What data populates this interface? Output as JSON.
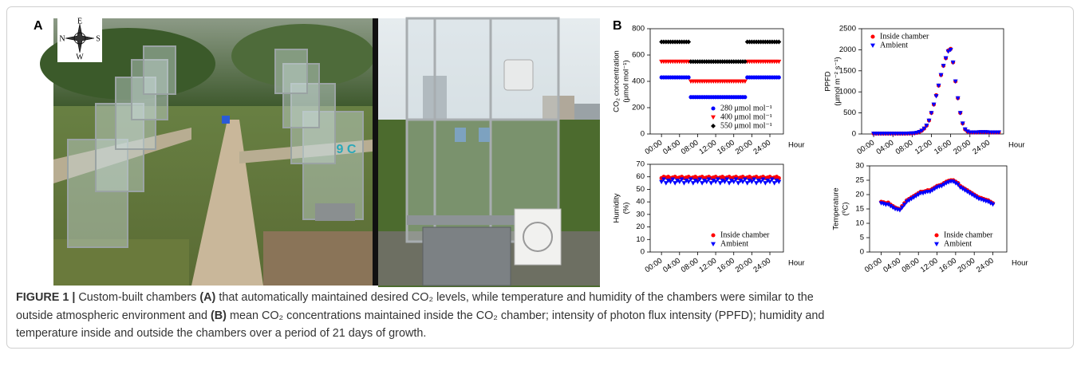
{
  "panel_a": {
    "label": "A",
    "compass": {
      "n": "N",
      "e": "E",
      "s": "S",
      "w": "W"
    },
    "sign_text": "9 C"
  },
  "panel_b": {
    "label": "B"
  },
  "chart_data": [
    {
      "type": "scatter",
      "ylabel": [
        "CO₂ concentration",
        "(μmol mol⁻¹)"
      ],
      "xlabel": "Hour",
      "x": [
        0,
        0.5,
        1,
        1.5,
        2,
        2.5,
        3,
        3.5,
        4,
        4.5,
        5,
        5.5,
        6,
        6.5,
        7,
        7.5,
        8,
        8.5,
        9,
        9.5,
        10,
        10.5,
        11,
        11.5,
        12,
        12.5,
        13,
        13.5,
        14,
        14.5,
        15,
        15.5,
        16,
        16.5,
        17,
        17.5,
        18,
        18.5,
        19,
        19.5,
        20,
        20.5,
        21,
        21.5,
        22,
        22.5,
        23,
        23.5,
        24,
        24.5,
        25,
        25.5,
        26
      ],
      "xlim": [
        -2.5,
        27
      ],
      "xticks": [
        {
          "value": 0,
          "label": "00:00"
        },
        {
          "value": 4,
          "label": "04:00"
        },
        {
          "value": 8,
          "label": "08:00"
        },
        {
          "value": 12,
          "label": "12:00"
        },
        {
          "value": 16,
          "label": "16:00"
        },
        {
          "value": 20,
          "label": "20:00"
        },
        {
          "value": 24,
          "label": "24:00"
        }
      ],
      "ylim": [
        0,
        800
      ],
      "yticks": [
        0,
        200,
        400,
        600,
        800
      ],
      "legend": "lower right",
      "series": [
        {
          "name": "280 μmol mol⁻¹",
          "color": "#0000ff",
          "marker": "circle",
          "values": [
            430,
            430,
            430,
            430,
            430,
            430,
            430,
            430,
            430,
            430,
            430,
            430,
            430,
            280,
            280,
            280,
            280,
            280,
            280,
            280,
            280,
            280,
            280,
            280,
            280,
            280,
            280,
            280,
            280,
            280,
            280,
            280,
            280,
            280,
            280,
            280,
            280,
            280,
            430,
            430,
            430,
            430,
            430,
            430,
            430,
            430,
            430,
            430,
            430,
            430,
            430,
            430,
            430
          ]
        },
        {
          "name": "400 μmol mol⁻¹",
          "color": "#ff0000",
          "marker": "triangle",
          "values": [
            550,
            550,
            550,
            550,
            550,
            550,
            550,
            550,
            550,
            550,
            550,
            550,
            550,
            400,
            400,
            400,
            400,
            400,
            400,
            400,
            400,
            400,
            400,
            400,
            400,
            400,
            400,
            400,
            400,
            400,
            400,
            400,
            400,
            400,
            400,
            400,
            400,
            400,
            550,
            550,
            550,
            550,
            550,
            550,
            550,
            550,
            550,
            550,
            550,
            550,
            550,
            550,
            550
          ]
        },
        {
          "name": "550 μmol mol⁻¹",
          "color": "#000000",
          "marker": "diamond",
          "values": [
            700,
            700,
            700,
            700,
            700,
            700,
            700,
            700,
            700,
            700,
            700,
            700,
            700,
            550,
            550,
            550,
            550,
            550,
            550,
            550,
            550,
            550,
            550,
            550,
            550,
            550,
            550,
            550,
            550,
            550,
            550,
            550,
            550,
            550,
            550,
            550,
            550,
            550,
            700,
            700,
            700,
            700,
            700,
            700,
            700,
            700,
            700,
            700,
            700,
            700,
            700,
            700,
            700
          ]
        }
      ]
    },
    {
      "type": "scatter",
      "ylabel": [
        "PPFD",
        "(μmol m⁻² s⁻¹)"
      ],
      "xlabel": "Hour",
      "x": [
        0,
        0.5,
        1,
        1.5,
        2,
        2.5,
        3,
        3.5,
        4,
        4.5,
        5,
        5.5,
        6,
        6.5,
        7,
        7.5,
        8,
        8.5,
        9,
        9.5,
        10,
        10.5,
        11,
        11.5,
        12,
        12.5,
        13,
        13.5,
        14,
        14.5,
        15,
        15.5,
        16,
        16.5,
        17,
        17.5,
        18,
        18.5,
        19,
        19.5,
        20,
        20.5,
        21,
        21.5,
        22,
        22.5,
        23,
        23.5,
        24,
        24.5,
        25,
        25.5,
        26
      ],
      "xlim": [
        -2.5,
        27
      ],
      "xticks": [
        {
          "value": 0,
          "label": "00:00"
        },
        {
          "value": 4,
          "label": "04:00"
        },
        {
          "value": 8,
          "label": "08:00"
        },
        {
          "value": 12,
          "label": "12:00"
        },
        {
          "value": 16,
          "label": "16:00"
        },
        {
          "value": 20,
          "label": "20:00"
        },
        {
          "value": 24,
          "label": "24:00"
        }
      ],
      "ylim": [
        0,
        2500
      ],
      "yticks": [
        0,
        500,
        1000,
        1500,
        2000,
        2500
      ],
      "legend": "upper left",
      "series": [
        {
          "name": "Inside chamber",
          "color": "#ff0000",
          "marker": "circle",
          "values": [
            10,
            10,
            10,
            10,
            10,
            10,
            10,
            10,
            10,
            10,
            10,
            10,
            10,
            10,
            12,
            14,
            16,
            20,
            30,
            50,
            80,
            130,
            200,
            320,
            500,
            700,
            920,
            1150,
            1400,
            1620,
            1800,
            1980,
            2020,
            1700,
            1250,
            850,
            500,
            250,
            110,
            60,
            40,
            40,
            40,
            40,
            45,
            45,
            45,
            45,
            40,
            40,
            40,
            40,
            40
          ]
        },
        {
          "name": "Ambient",
          "color": "#0000ff",
          "marker": "triangle",
          "values": [
            10,
            10,
            10,
            10,
            10,
            10,
            10,
            10,
            10,
            10,
            10,
            10,
            10,
            10,
            12,
            14,
            16,
            20,
            30,
            50,
            80,
            130,
            200,
            320,
            500,
            700,
            900,
            1150,
            1400,
            1620,
            1800,
            1960,
            2000,
            1700,
            1250,
            850,
            500,
            250,
            110,
            60,
            40,
            40,
            40,
            40,
            45,
            45,
            45,
            45,
            40,
            40,
            40,
            40,
            40
          ]
        }
      ]
    },
    {
      "type": "scatter",
      "ylabel": [
        "Humidity",
        "(%)"
      ],
      "xlabel": "Hour",
      "x": [
        0,
        0.5,
        1,
        1.5,
        2,
        2.5,
        3,
        3.5,
        4,
        4.5,
        5,
        5.5,
        6,
        6.5,
        7,
        7.5,
        8,
        8.5,
        9,
        9.5,
        10,
        10.5,
        11,
        11.5,
        12,
        12.5,
        13,
        13.5,
        14,
        14.5,
        15,
        15.5,
        16,
        16.5,
        17,
        17.5,
        18,
        18.5,
        19,
        19.5,
        20,
        20.5,
        21,
        21.5,
        22,
        22.5,
        23,
        23.5,
        24,
        24.5,
        25,
        25.5,
        26
      ],
      "xlim": [
        -2.5,
        27
      ],
      "xticks": [
        {
          "value": 0,
          "label": "00:00"
        },
        {
          "value": 4,
          "label": "04:00"
        },
        {
          "value": 8,
          "label": "08:00"
        },
        {
          "value": 12,
          "label": "12:00"
        },
        {
          "value": 16,
          "label": "16:00"
        },
        {
          "value": 20,
          "label": "20:00"
        },
        {
          "value": 24,
          "label": "24:00"
        }
      ],
      "ylim": [
        0,
        70
      ],
      "yticks": [
        0,
        10,
        20,
        30,
        40,
        50,
        60,
        70
      ],
      "legend": "lower right",
      "series": [
        {
          "name": "Inside chamber",
          "color": "#ff0000",
          "marker": "circle",
          "values": [
            59,
            60,
            59.5,
            60,
            59,
            59.5,
            60,
            59,
            59.5,
            60,
            59,
            59.5,
            60,
            59,
            59.5,
            60,
            59,
            59.5,
            60,
            59,
            59.5,
            60,
            59,
            59.5,
            60,
            59,
            59.5,
            60,
            59,
            59.5,
            60,
            59,
            59.5,
            60,
            59,
            59.5,
            60,
            59,
            59.5,
            60,
            59,
            59.5,
            60,
            59,
            59.5,
            60,
            59,
            59.5,
            60,
            59,
            59.5,
            60,
            59
          ]
        },
        {
          "name": "Ambient",
          "color": "#0000ff",
          "marker": "triangle",
          "values": [
            56,
            58,
            55,
            57,
            56,
            58,
            55,
            57,
            56,
            58,
            55,
            57,
            56,
            58,
            55,
            57,
            56,
            58,
            55,
            57,
            56,
            58,
            55,
            57,
            56,
            58,
            55,
            57,
            56,
            58,
            55,
            57,
            56,
            58,
            55,
            57,
            56,
            58,
            55,
            57,
            56,
            58,
            55,
            57,
            56,
            58,
            55,
            57,
            56,
            58,
            55,
            57,
            56
          ]
        }
      ]
    },
    {
      "type": "scatter",
      "ylabel": [
        "Temperature",
        "(⁰C)"
      ],
      "xlabel": "Hour",
      "x": [
        0,
        0.5,
        1,
        1.5,
        2,
        2.5,
        3,
        3.5,
        4,
        4.5,
        5,
        5.5,
        6,
        6.5,
        7,
        7.5,
        8,
        8.5,
        9,
        9.5,
        10,
        10.5,
        11,
        11.5,
        12,
        12.5,
        13,
        13.5,
        14,
        14.5,
        15,
        15.5,
        16,
        16.5,
        17,
        17.5,
        18,
        18.5,
        19,
        19.5,
        20,
        20.5,
        21,
        21.5,
        22,
        22.5,
        23,
        23.5,
        24
      ],
      "xlim": [
        -2.5,
        27
      ],
      "xticks": [
        {
          "value": 0,
          "label": "00:00"
        },
        {
          "value": 4,
          "label": "04:00"
        },
        {
          "value": 8,
          "label": "08:00"
        },
        {
          "value": 12,
          "label": "12:00"
        },
        {
          "value": 16,
          "label": "16:00"
        },
        {
          "value": 20,
          "label": "20:00"
        },
        {
          "value": 24,
          "label": "24:00"
        }
      ],
      "ylim": [
        0,
        30
      ],
      "yticks": [
        0,
        5,
        10,
        15,
        20,
        25,
        30
      ],
      "legend": "lower right",
      "series": [
        {
          "name": "Inside chamber",
          "color": "#ff0000",
          "marker": "circle",
          "values": [
            17.5,
            17.3,
            17,
            17.2,
            16.5,
            16,
            15.5,
            15.2,
            15,
            16,
            17,
            18,
            18.5,
            19,
            19.5,
            20,
            20.5,
            21,
            21,
            21.2,
            21.5,
            21.5,
            22,
            22.5,
            23,
            23.2,
            23.5,
            24,
            24.5,
            24.8,
            25,
            25,
            24.5,
            24,
            23,
            22.5,
            22,
            21.5,
            21,
            20.5,
            20,
            19.5,
            19,
            18.8,
            18.5,
            18.2,
            18,
            17.5,
            17
          ]
        },
        {
          "name": "Ambient",
          "color": "#0000ff",
          "marker": "triangle",
          "values": [
            17,
            16.8,
            16.5,
            16.6,
            16,
            15.5,
            15,
            14.8,
            14.6,
            15.5,
            16.5,
            17.5,
            18,
            18.5,
            19,
            19.5,
            20,
            20.5,
            20.5,
            20.8,
            21,
            21,
            21.5,
            22,
            22.5,
            22.8,
            23,
            23.5,
            24,
            24.3,
            24.6,
            24.5,
            24,
            23.5,
            22.5,
            22,
            21.5,
            21,
            20.5,
            20,
            19.5,
            19,
            18.5,
            18.3,
            18,
            17.7,
            17.5,
            17,
            16.6
          ]
        }
      ]
    }
  ],
  "caption": {
    "lines": [
      [
        {
          "text": "FIGURE 1 | ",
          "bold": true
        },
        {
          "text": "Custom-built chambers "
        },
        {
          "text": "(A)",
          "bold": true
        },
        {
          "text": " that automatically maintained desired CO₂ levels, while temperature and humidity of the chambers were similar to the"
        }
      ],
      [
        {
          "text": "outside atmospheric environment and "
        },
        {
          "text": "(B)",
          "bold": true
        },
        {
          "text": " mean CO₂ concentrations maintained inside the CO₂ chamber; intensity of photon flux intensity (PPFD); humidity and"
        }
      ],
      [
        {
          "text": "temperature inside and outside the chambers over a period of 21 days of growth."
        }
      ]
    ]
  }
}
